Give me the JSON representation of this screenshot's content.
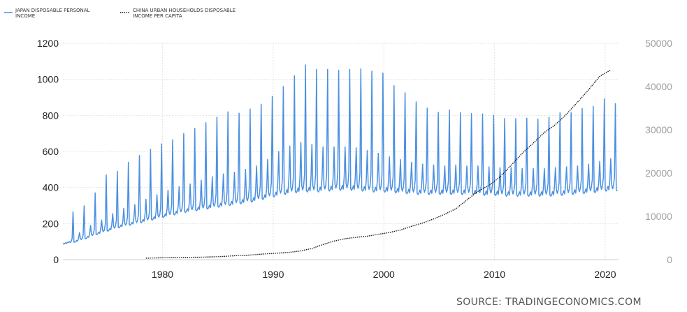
{
  "source_label": "SOURCE: TRADINGECONOMICS.COM",
  "chart_data": {
    "type": "line",
    "title": "",
    "xlabel": "",
    "ylabel_left": "",
    "ylabel_right": "",
    "xlim": [
      1971,
      2021.2
    ],
    "x_ticks": [
      1980,
      1990,
      2000,
      2010,
      2020
    ],
    "ylim_left": [
      0,
      1200
    ],
    "y_ticks_left": [
      0,
      200,
      400,
      600,
      800,
      1000,
      1200
    ],
    "ylim_right": [
      0,
      50000
    ],
    "y_ticks_right": [
      0,
      10000,
      20000,
      30000,
      40000,
      50000
    ],
    "grid": true,
    "legend_position": "top-left",
    "series": [
      {
        "name": "JAPAN DISPOSABLE PERSONAL INCOME",
        "axis": "left",
        "color": "#4a90e2",
        "style": "solid",
        "frequency": "monthly",
        "points": [
          [
            1971,
            90
          ],
          [
            1972,
            100
          ],
          [
            1973,
            120
          ],
          [
            1974,
            145
          ],
          [
            1975,
            165
          ],
          [
            1976,
            185
          ],
          [
            1977,
            200
          ],
          [
            1978,
            215
          ],
          [
            1979,
            230
          ],
          [
            1980,
            245
          ],
          [
            1981,
            260
          ],
          [
            1982,
            275
          ],
          [
            1983,
            285
          ],
          [
            1984,
            295
          ],
          [
            1985,
            305
          ],
          [
            1986,
            315
          ],
          [
            1987,
            325
          ],
          [
            1988,
            335
          ],
          [
            1989,
            350
          ],
          [
            1990,
            365
          ],
          [
            1991,
            380
          ],
          [
            1992,
            390
          ],
          [
            1993,
            395
          ],
          [
            1994,
            395
          ],
          [
            1995,
            400
          ],
          [
            1996,
            405
          ],
          [
            1997,
            405
          ],
          [
            1998,
            400
          ],
          [
            1999,
            395
          ],
          [
            2000,
            395
          ],
          [
            2001,
            390
          ],
          [
            2002,
            385
          ],
          [
            2003,
            380
          ],
          [
            2004,
            380
          ],
          [
            2005,
            380
          ],
          [
            2006,
            380
          ],
          [
            2007,
            380
          ],
          [
            2008,
            380
          ],
          [
            2009,
            375
          ],
          [
            2010,
            375
          ],
          [
            2011,
            370
          ],
          [
            2012,
            370
          ],
          [
            2013,
            370
          ],
          [
            2014,
            370
          ],
          [
            2015,
            370
          ],
          [
            2016,
            375
          ],
          [
            2017,
            380
          ],
          [
            2018,
            385
          ],
          [
            2019,
            390
          ],
          [
            2020,
            400
          ],
          [
            2021,
            400
          ]
        ],
        "annual_peaks": [
          [
            1971.9,
            265
          ],
          [
            1972.9,
            298
          ],
          [
            1973.9,
            370
          ],
          [
            1974.9,
            470
          ],
          [
            1975.9,
            490
          ],
          [
            1976.9,
            540
          ],
          [
            1977.9,
            578
          ],
          [
            1978.9,
            612
          ],
          [
            1979.9,
            642
          ],
          [
            1980.9,
            665
          ],
          [
            1981.9,
            700
          ],
          [
            1982.9,
            728
          ],
          [
            1983.9,
            760
          ],
          [
            1984.9,
            790
          ],
          [
            1985.9,
            820
          ],
          [
            1986.9,
            812
          ],
          [
            1987.9,
            835
          ],
          [
            1988.9,
            862
          ],
          [
            1989.9,
            905
          ],
          [
            1990.9,
            960
          ],
          [
            1991.9,
            1020
          ],
          [
            1992.9,
            1080
          ],
          [
            1993.9,
            1055
          ],
          [
            1994.9,
            1055
          ],
          [
            1995.9,
            1050
          ],
          [
            1996.9,
            1055
          ],
          [
            1997.9,
            1058
          ],
          [
            1998.9,
            1045
          ],
          [
            1999.9,
            1035
          ],
          [
            2000.9,
            965
          ],
          [
            2001.9,
            925
          ],
          [
            2002.9,
            875
          ],
          [
            2003.9,
            840
          ],
          [
            2004.9,
            818
          ],
          [
            2005.9,
            830
          ],
          [
            2006.9,
            815
          ],
          [
            2007.9,
            810
          ],
          [
            2008.9,
            808
          ],
          [
            2009.9,
            800
          ],
          [
            2010.9,
            783
          ],
          [
            2011.9,
            782
          ],
          [
            2012.9,
            785
          ],
          [
            2013.9,
            780
          ],
          [
            2014.9,
            790
          ],
          [
            2015.9,
            815
          ],
          [
            2016.9,
            815
          ],
          [
            2017.9,
            838
          ],
          [
            2018.9,
            850
          ],
          [
            2019.9,
            892
          ],
          [
            2020.9,
            865
          ]
        ],
        "mid_year_peaks": [
          [
            1972.5,
            150
          ],
          [
            1973.5,
            190
          ],
          [
            1974.5,
            220
          ],
          [
            1975.5,
            255
          ],
          [
            1976.5,
            285
          ],
          [
            1977.5,
            305
          ],
          [
            1978.5,
            335
          ],
          [
            1979.5,
            360
          ],
          [
            1980.5,
            385
          ],
          [
            1981.5,
            405
          ],
          [
            1982.5,
            420
          ],
          [
            1983.5,
            440
          ],
          [
            1984.5,
            460
          ],
          [
            1985.5,
            475
          ],
          [
            1986.5,
            485
          ],
          [
            1987.5,
            500
          ],
          [
            1988.5,
            520
          ],
          [
            1989.5,
            555
          ],
          [
            1990.5,
            600
          ],
          [
            1991.5,
            630
          ],
          [
            1992.5,
            650
          ],
          [
            1993.5,
            640
          ],
          [
            1994.5,
            625
          ],
          [
            1995.5,
            625
          ],
          [
            1996.5,
            625
          ],
          [
            1997.5,
            620
          ],
          [
            1998.5,
            605
          ],
          [
            1999.5,
            590
          ],
          [
            2000.5,
            570
          ],
          [
            2001.5,
            555
          ],
          [
            2002.5,
            540
          ],
          [
            2003.5,
            530
          ],
          [
            2004.5,
            525
          ],
          [
            2005.5,
            520
          ],
          [
            2006.5,
            525
          ],
          [
            2007.5,
            520
          ],
          [
            2008.5,
            520
          ],
          [
            2009.5,
            515
          ],
          [
            2010.5,
            510
          ],
          [
            2011.5,
            510
          ],
          [
            2012.5,
            505
          ],
          [
            2013.5,
            505
          ],
          [
            2014.5,
            505
          ],
          [
            2015.5,
            510
          ],
          [
            2016.5,
            515
          ],
          [
            2017.5,
            520
          ],
          [
            2018.5,
            530
          ],
          [
            2019.5,
            545
          ],
          [
            2020.5,
            560
          ]
        ]
      },
      {
        "name": "CHINA URBAN HOUSEHOLDS DISPOSABLE INCOME PER CAPITA",
        "axis": "right",
        "color": "#111111",
        "style": "dotted",
        "frequency": "annual",
        "points": [
          [
            1978.5,
            343
          ],
          [
            1979.5,
            405
          ],
          [
            1980.5,
            478
          ],
          [
            1981.5,
            492
          ],
          [
            1982.5,
            527
          ],
          [
            1983.5,
            564
          ],
          [
            1984.5,
            651
          ],
          [
            1985.5,
            739
          ],
          [
            1986.5,
            900
          ],
          [
            1987.5,
            1002
          ],
          [
            1988.5,
            1180
          ],
          [
            1989.5,
            1374
          ],
          [
            1990.5,
            1510
          ],
          [
            1991.5,
            1701
          ],
          [
            1992.5,
            2027
          ],
          [
            1993.5,
            2577
          ],
          [
            1994.5,
            3496
          ],
          [
            1995.5,
            4283
          ],
          [
            1996.5,
            4839
          ],
          [
            1997.5,
            5160
          ],
          [
            1998.5,
            5425
          ],
          [
            1999.5,
            5854
          ],
          [
            2000.5,
            6280
          ],
          [
            2001.5,
            6860
          ],
          [
            2002.5,
            7703
          ],
          [
            2003.5,
            8472
          ],
          [
            2004.5,
            9422
          ],
          [
            2005.5,
            10493
          ],
          [
            2006.5,
            11760
          ],
          [
            2007.5,
            13786
          ],
          [
            2008.5,
            15781
          ],
          [
            2009.5,
            17175
          ],
          [
            2010.5,
            19109
          ],
          [
            2011.5,
            21810
          ],
          [
            2012.5,
            24565
          ],
          [
            2013.5,
            26955
          ],
          [
            2014.5,
            29381
          ],
          [
            2015.5,
            31195
          ],
          [
            2016.5,
            33616
          ],
          [
            2017.5,
            36396
          ],
          [
            2018.5,
            39251
          ],
          [
            2019.5,
            42359
          ],
          [
            2020.5,
            43834
          ]
        ]
      }
    ]
  }
}
